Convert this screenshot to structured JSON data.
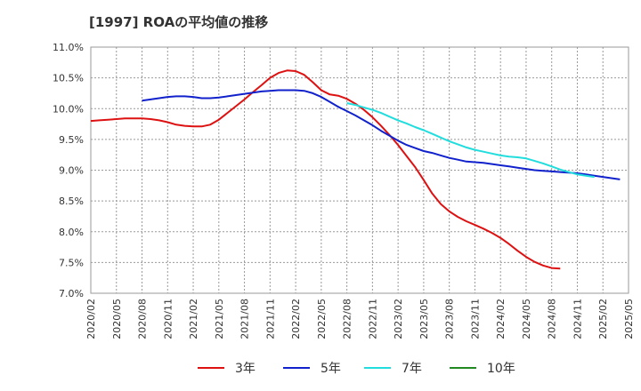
{
  "chart_data": {
    "type": "line",
    "title": "[1997]  ROAの平均値の推移",
    "xlabel": "",
    "ylabel": "",
    "x_ticks": [
      "2020/02",
      "2020/05",
      "2020/08",
      "2020/11",
      "2021/02",
      "2021/05",
      "2021/08",
      "2021/11",
      "2022/02",
      "2022/05",
      "2022/08",
      "2022/11",
      "2023/02",
      "2023/05",
      "2023/08",
      "2023/11",
      "2024/02",
      "2024/05",
      "2024/08",
      "2024/11",
      "2025/02",
      "2025/05"
    ],
    "y_ticks": [
      "7.0%",
      "7.5%",
      "8.0%",
      "8.5%",
      "9.0%",
      "9.5%",
      "10.0%",
      "10.5%",
      "11.0%"
    ],
    "ylim": [
      7.0,
      11.0
    ],
    "grid": true,
    "legend_position": "bottom",
    "series": [
      {
        "name": "3年",
        "color": "#dd1111",
        "values": [
          9.8,
          9.81,
          9.82,
          9.83,
          9.84,
          9.84,
          9.84,
          9.83,
          9.81,
          9.78,
          9.74,
          9.72,
          9.71,
          9.71,
          9.74,
          9.82,
          9.93,
          10.04,
          10.15,
          10.27,
          10.38,
          10.5,
          10.58,
          10.62,
          10.61,
          10.55,
          10.43,
          10.3,
          10.23,
          10.21,
          10.16,
          10.08,
          9.98,
          9.86,
          9.72,
          9.57,
          9.41,
          9.23,
          9.05,
          8.84,
          8.62,
          8.45,
          8.33,
          8.24,
          8.17,
          8.11,
          8.05,
          7.98,
          7.9,
          7.8,
          7.69,
          7.59,
          7.51,
          7.45,
          7.41,
          7.4
        ]
      },
      {
        "name": "5年",
        "color": "#1122cc",
        "values": [
          null,
          null,
          null,
          null,
          null,
          null,
          10.13,
          10.15,
          10.17,
          10.19,
          10.2,
          10.2,
          10.19,
          10.17,
          10.17,
          10.18,
          10.2,
          10.22,
          10.24,
          10.26,
          10.28,
          10.29,
          10.3,
          10.3,
          10.3,
          10.29,
          10.25,
          10.19,
          10.11,
          10.03,
          9.96,
          9.89,
          9.81,
          9.73,
          9.64,
          9.56,
          9.48,
          9.41,
          9.36,
          9.31,
          9.28,
          9.24,
          9.2,
          9.17,
          9.14,
          9.13,
          9.12,
          9.1,
          9.08,
          9.06,
          9.04,
          9.02,
          9.0,
          8.99,
          8.98,
          8.97,
          8.96,
          8.95,
          8.93,
          8.91,
          8.89,
          8.87,
          8.85
        ]
      },
      {
        "name": "7年",
        "color": "#22dddd",
        "values": [
          null,
          null,
          null,
          null,
          null,
          null,
          null,
          null,
          null,
          null,
          null,
          null,
          null,
          null,
          null,
          null,
          null,
          null,
          null,
          null,
          null,
          null,
          null,
          null,
          null,
          null,
          null,
          null,
          null,
          null,
          10.09,
          10.06,
          10.02,
          9.98,
          9.93,
          9.87,
          9.81,
          9.76,
          9.7,
          9.65,
          9.59,
          9.53,
          9.47,
          9.42,
          9.37,
          9.33,
          9.3,
          9.27,
          9.24,
          9.22,
          9.21,
          9.19,
          9.15,
          9.11,
          9.06,
          9.01,
          8.97,
          8.93,
          8.91,
          8.89
        ]
      },
      {
        "name": "10年",
        "color": "#228822",
        "values": []
      }
    ]
  }
}
